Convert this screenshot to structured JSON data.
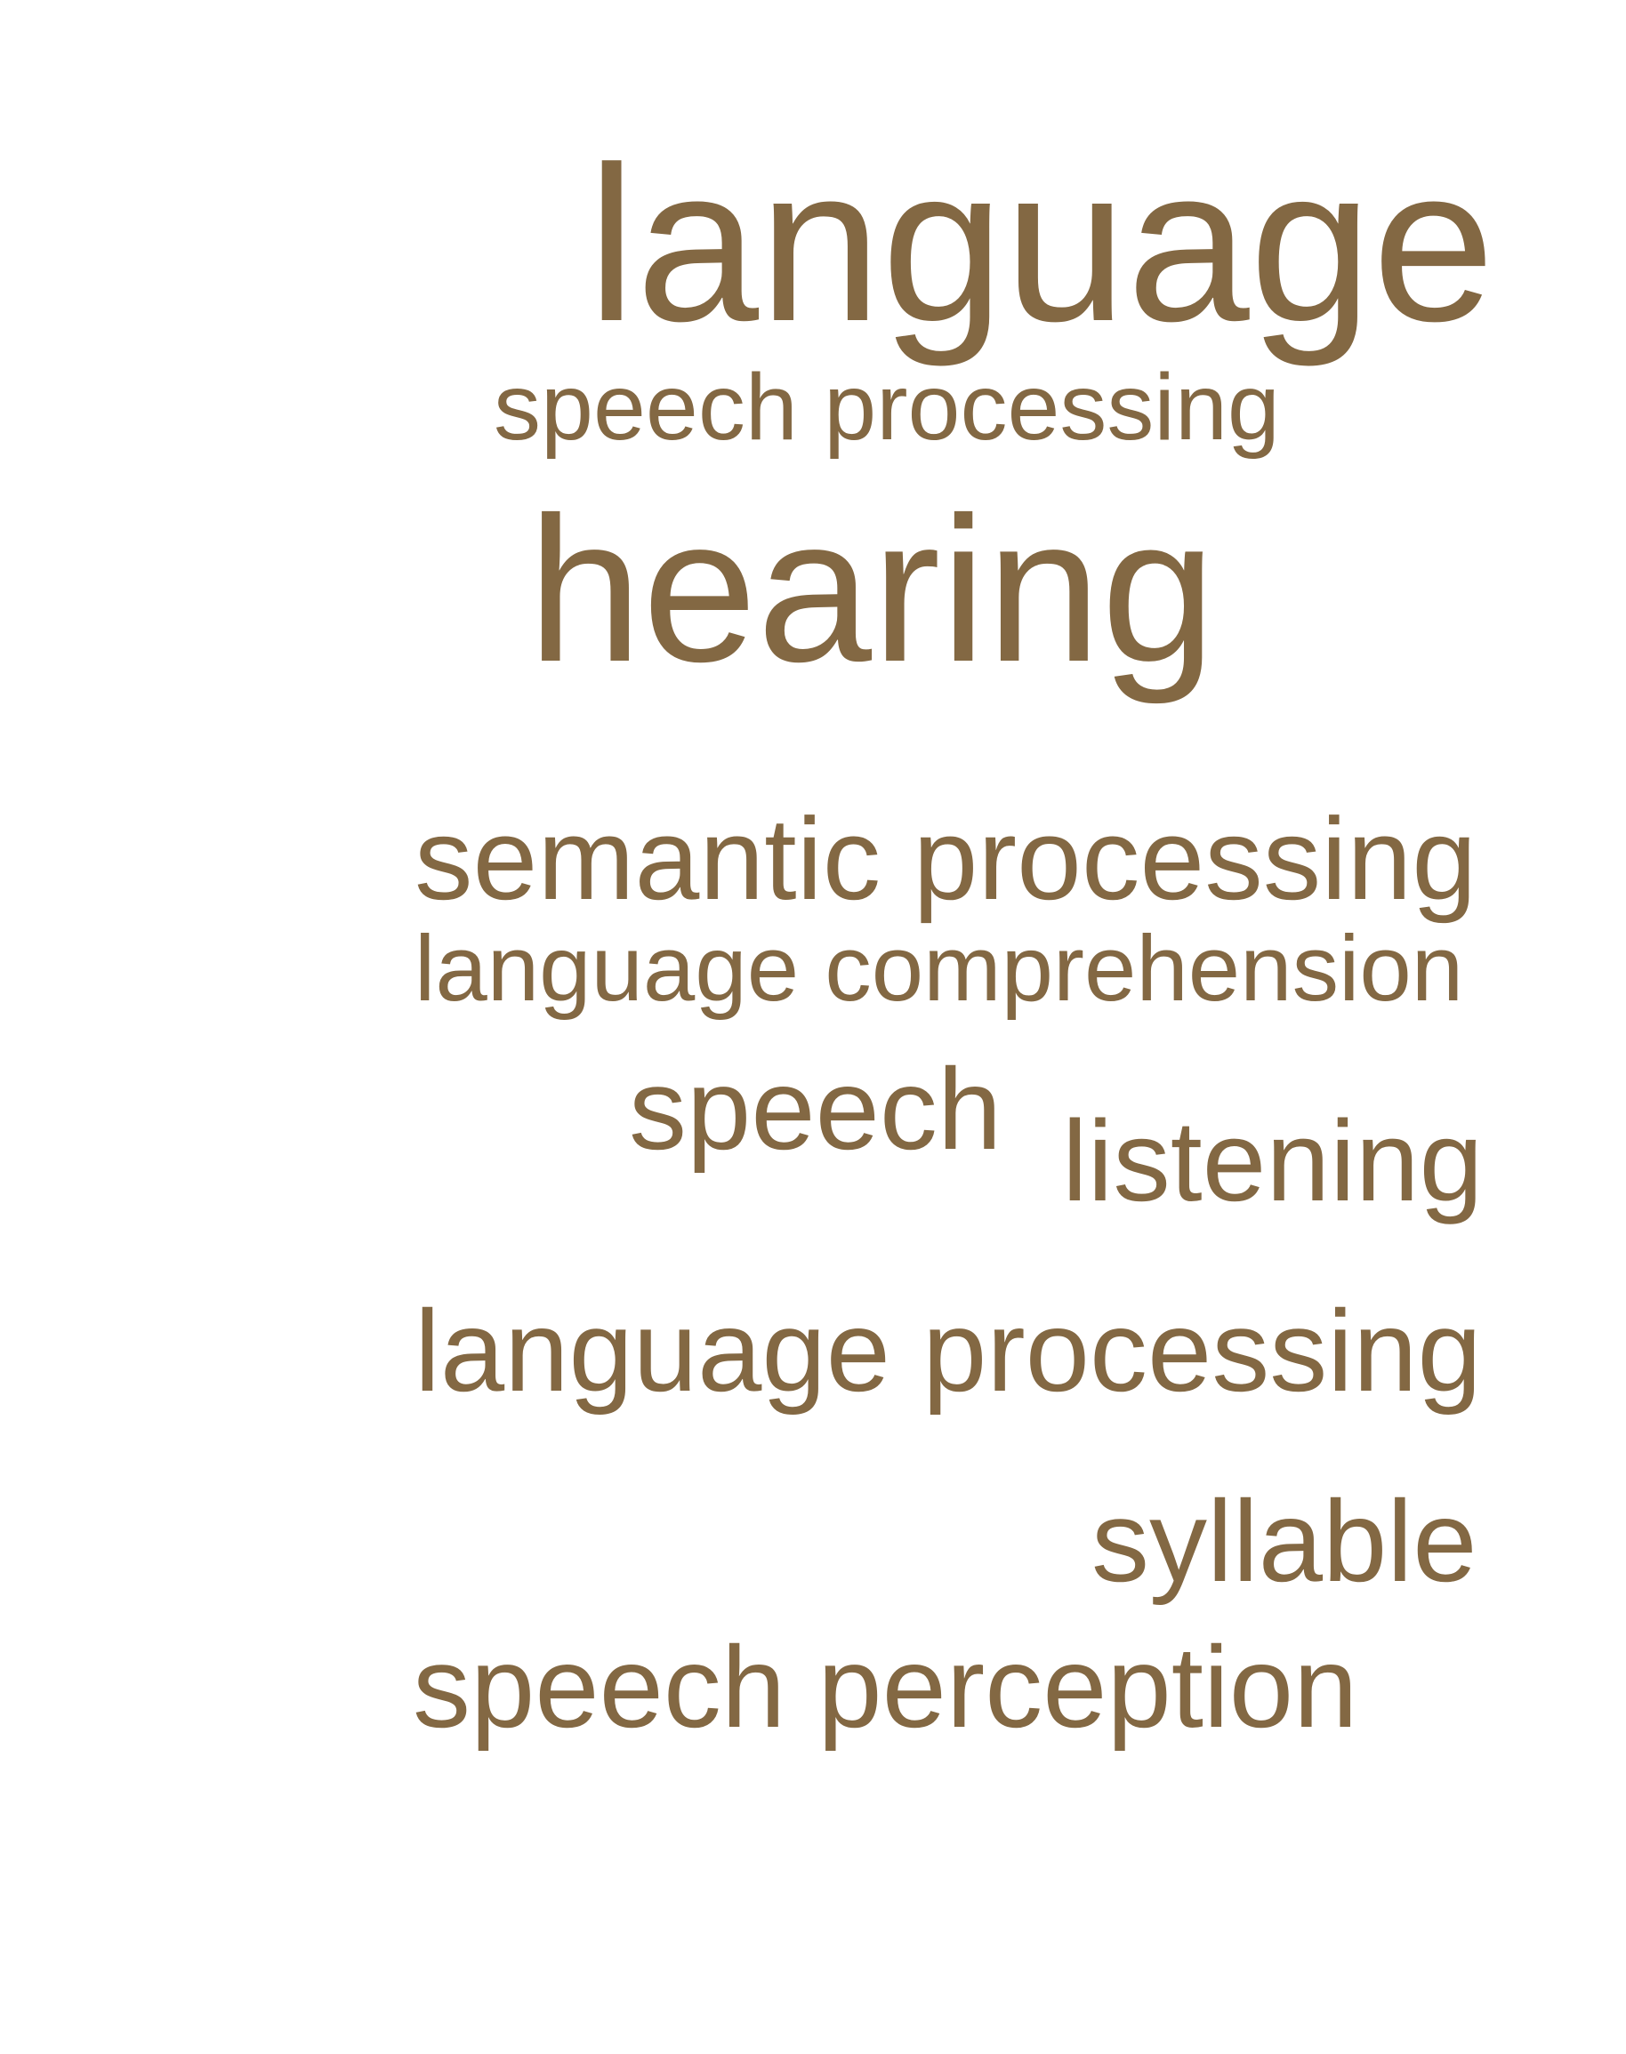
{
  "word_cloud": {
    "color": "#836843",
    "words": [
      "language",
      "speech processing",
      "hearing",
      "semantic processing",
      "language comprehension",
      "speech",
      "listening",
      "language processing",
      "syllable",
      "speech perception"
    ]
  }
}
